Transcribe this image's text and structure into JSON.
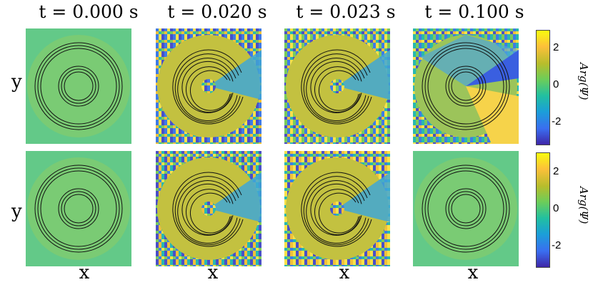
{
  "titles": [
    "t = 0.000 s",
    "t = 0.020 s",
    "t = 0.023 s",
    "t = 0.100 s"
  ],
  "ylabel": "y",
  "xlabel": "x",
  "colorbar": {
    "label": "Arg(Ψ)",
    "ticks": [
      "2",
      "0",
      "-2"
    ],
    "colors": [
      "#f9fb0e",
      "#fcc03a",
      "#b7bd2c",
      "#6ccd5a",
      "#22c0a0",
      "#1b9fd8",
      "#3a6ef0",
      "#3e26a8"
    ]
  },
  "rows": [
    {
      "panels": [
        "flat",
        "wind",
        "wind",
        "vortex"
      ]
    },
    {
      "panels": [
        "flat",
        "wind2",
        "wind2",
        "flat"
      ]
    }
  ]
}
